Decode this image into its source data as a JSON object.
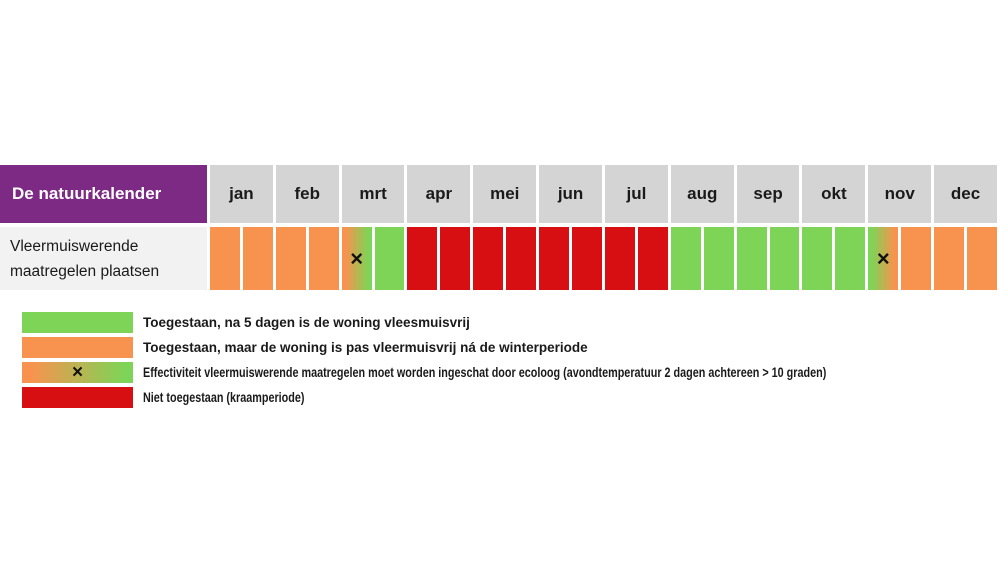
{
  "chart_data": {
    "type": "heatmap",
    "title": "De natuurkalender",
    "row_label": "Vleermuiswerende maatregelen plaatsen",
    "categories": [
      "jan",
      "feb",
      "mrt",
      "apr",
      "mei",
      "jun",
      "jul",
      "aug",
      "sep",
      "okt",
      "nov",
      "dec"
    ],
    "halves_per_month": 2,
    "x_marker": "×",
    "cells": [
      {
        "month": "jan",
        "half": 1,
        "status": "orange",
        "marker": false
      },
      {
        "month": "jan",
        "half": 2,
        "status": "orange",
        "marker": false
      },
      {
        "month": "feb",
        "half": 1,
        "status": "orange",
        "marker": false
      },
      {
        "month": "feb",
        "half": 2,
        "status": "orange",
        "marker": false
      },
      {
        "month": "mrt",
        "half": 1,
        "status": "mix-orange-green",
        "marker": true
      },
      {
        "month": "mrt",
        "half": 2,
        "status": "green",
        "marker": false
      },
      {
        "month": "apr",
        "half": 1,
        "status": "red",
        "marker": false
      },
      {
        "month": "apr",
        "half": 2,
        "status": "red",
        "marker": false
      },
      {
        "month": "mei",
        "half": 1,
        "status": "red",
        "marker": false
      },
      {
        "month": "mei",
        "half": 2,
        "status": "red",
        "marker": false
      },
      {
        "month": "jun",
        "half": 1,
        "status": "red",
        "marker": false
      },
      {
        "month": "jun",
        "half": 2,
        "status": "red",
        "marker": false
      },
      {
        "month": "jul",
        "half": 1,
        "status": "red",
        "marker": false
      },
      {
        "month": "jul",
        "half": 2,
        "status": "red",
        "marker": false
      },
      {
        "month": "aug",
        "half": 1,
        "status": "green",
        "marker": false
      },
      {
        "month": "aug",
        "half": 2,
        "status": "green",
        "marker": false
      },
      {
        "month": "sep",
        "half": 1,
        "status": "green",
        "marker": false
      },
      {
        "month": "sep",
        "half": 2,
        "status": "green",
        "marker": false
      },
      {
        "month": "okt",
        "half": 1,
        "status": "green",
        "marker": false
      },
      {
        "month": "okt",
        "half": 2,
        "status": "green",
        "marker": false
      },
      {
        "month": "nov",
        "half": 1,
        "status": "mix-green-orange",
        "marker": true
      },
      {
        "month": "nov",
        "half": 2,
        "status": "orange",
        "marker": false
      },
      {
        "month": "dec",
        "half": 1,
        "status": "orange",
        "marker": false
      },
      {
        "month": "dec",
        "half": 2,
        "status": "orange",
        "marker": false
      }
    ],
    "legend": {
      "items": [
        {
          "swatch": "green",
          "label": "Toegestaan, na 5 dagen is de woning vleesmuisvrij"
        },
        {
          "swatch": "orange",
          "label": "Toegestaan, maar de woning is pas vleermuisvrij ná de winterperiode"
        },
        {
          "swatch": "mix-orange-green-x",
          "label": "Effectiviteit vleermuiswerende maatregelen moet worden ingeschat door ecoloog (avondtemperatuur 2 dagen achtereen > 10 graden)"
        },
        {
          "swatch": "red",
          "label": "Niet toegestaan (kraamperiode)"
        }
      ]
    },
    "colors": {
      "purple": "#7C2A84",
      "header_gray": "#D4D4D4",
      "label_bg": "#F2F2F2",
      "orange": "#F8934F",
      "green": "#7ED457",
      "red": "#D70F12",
      "text": "#1A1A1A",
      "background": "#FFFFFF"
    }
  }
}
